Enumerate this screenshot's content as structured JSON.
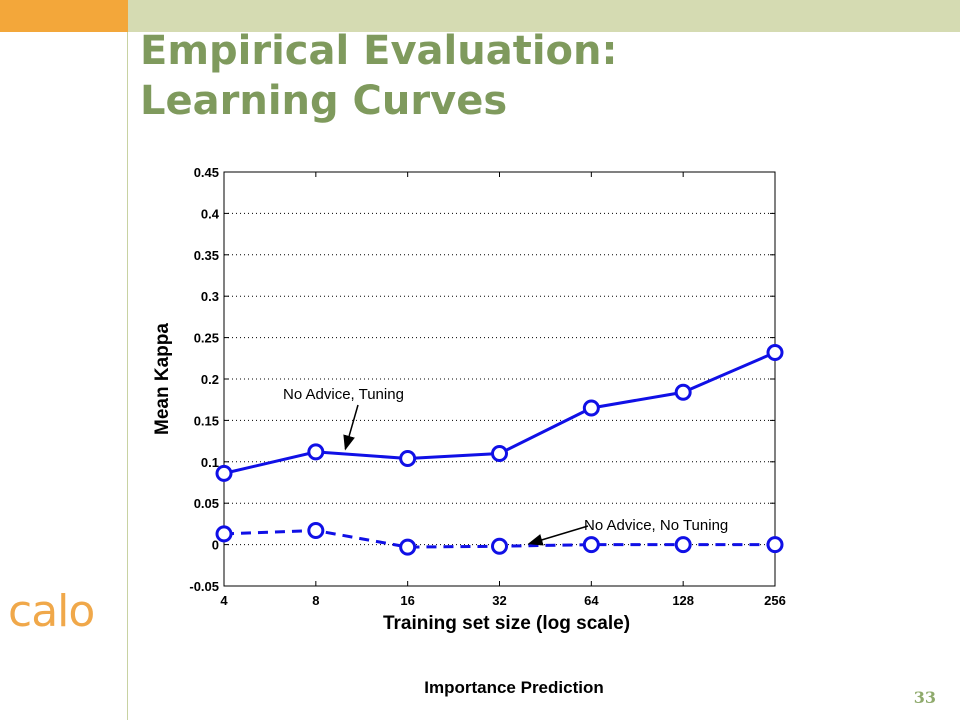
{
  "slide": {
    "title_line1": "Empirical Evaluation:",
    "title_line2": "Learning Curves",
    "logo_text": "calo",
    "caption": "Importance Prediction",
    "page_number": "33"
  },
  "colors": {
    "corner_accent": "#f3a73a",
    "top_band": "#d5dbb2",
    "title": "#7f9a5d",
    "rule": "#c8d2a2",
    "series": "#1010e6"
  },
  "chart_data": {
    "type": "line",
    "xlabel": "Training set size (log scale)",
    "ylabel": "Mean Kappa",
    "x_scale": "log2",
    "x": [
      4,
      8,
      16,
      32,
      64,
      128,
      256
    ],
    "x_tick_labels": [
      "4",
      "8",
      "16",
      "32",
      "64",
      "128",
      "256"
    ],
    "ylim": [
      -0.05,
      0.45
    ],
    "y_ticks": [
      -0.05,
      0,
      0.05,
      0.1,
      0.15,
      0.2,
      0.25,
      0.3,
      0.35,
      0.4,
      0.45
    ],
    "y_tick_labels": [
      "-0.05",
      "0",
      "0.05",
      "0.1",
      "0.15",
      "0.2",
      "0.25",
      "0.3",
      "0.35",
      "0.4",
      "0.45"
    ],
    "grid": "horizontal dotted",
    "series": [
      {
        "values": [
          0.086,
          0.112,
          0.104,
          0.11,
          0.165,
          0.184,
          0.232
        ],
        "style": "solid",
        "marker": "circle"
      },
      {
        "values": [
          0.013,
          0.017,
          -0.003,
          -0.002,
          0.0,
          0.0,
          0.0
        ],
        "style": "dashed",
        "marker": "circle"
      }
    ],
    "annotations": [
      {
        "text": "No Advice, Tuning",
        "points_to_series": 0,
        "points_to_x": 10
      },
      {
        "text": "No Advice, No Tuning",
        "points_to_series": 1,
        "points_to_x": 40
      }
    ]
  }
}
